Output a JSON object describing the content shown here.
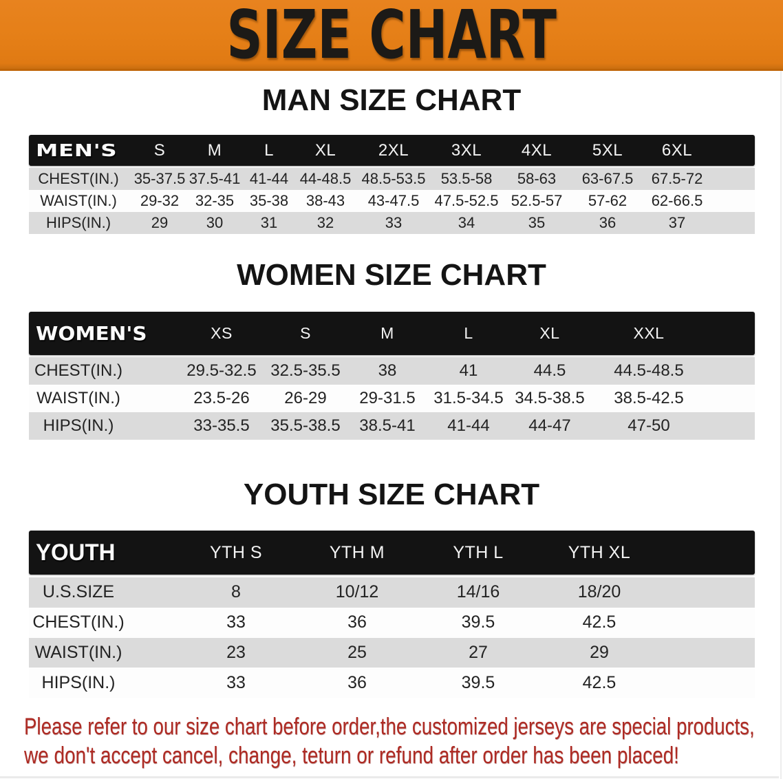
{
  "banner": {
    "title": "SIZE CHART",
    "background_color": "#e5801a",
    "text_color": "#1c1a17"
  },
  "sections": [
    {
      "title": "MAN SIZE CHART",
      "table": {
        "label": "MEN'S",
        "columns": [
          "S",
          "M",
          "L",
          "XL",
          "2XL",
          "3XL",
          "4XL",
          "5XL",
          "6XL"
        ],
        "rows": [
          {
            "label": "CHEST(IN.)",
            "values": [
              "35-37.5",
              "37.5-41",
              "41-44",
              "44-48.5",
              "48.5-53.5",
              "53.5-58",
              "58-63",
              "63-67.5",
              "67.5-72"
            ]
          },
          {
            "label": "WAIST(IN.)",
            "values": [
              "29-32",
              "32-35",
              "35-38",
              "38-43",
              "43-47.5",
              "47.5-52.5",
              "52.5-57",
              "57-62",
              "62-66.5"
            ]
          },
          {
            "label": "HIPS(IN.)",
            "values": [
              "29",
              "30",
              "31",
              "32",
              "33",
              "34",
              "35",
              "36",
              "37"
            ]
          }
        ]
      }
    },
    {
      "title": "WOMEN SIZE CHART",
      "table": {
        "label": "WOMEN'S",
        "columns": [
          "XS",
          "S",
          "M",
          "L",
          "XL",
          "XXL"
        ],
        "rows": [
          {
            "label": "CHEST(IN.)",
            "values": [
              "29.5-32.5",
              "32.5-35.5",
              "38",
              "41",
              "44.5",
              "44.5-48.5"
            ]
          },
          {
            "label": "WAIST(IN.)",
            "values": [
              "23.5-26",
              "26-29",
              "29-31.5",
              "31.5-34.5",
              "34.5-38.5",
              "38.5-42.5"
            ]
          },
          {
            "label": "HIPS(IN.)",
            "values": [
              "33-35.5",
              "35.5-38.5",
              "38.5-41",
              "41-44",
              "44-47",
              "47-50"
            ]
          }
        ]
      }
    },
    {
      "title": "YOUTH SIZE CHART",
      "table": {
        "label": "YOUTH",
        "columns": [
          "YTH S",
          "YTH M",
          "YTH L",
          "YTH XL"
        ],
        "rows": [
          {
            "label": "U.S.SIZE",
            "values": [
              "8",
              "10/12",
              "14/16",
              "18/20"
            ]
          },
          {
            "label": "CHEST(IN.)",
            "values": [
              "33",
              "36",
              "39.5",
              "42.5"
            ]
          },
          {
            "label": "WAIST(IN.)",
            "values": [
              "23",
              "25",
              "27",
              "29"
            ]
          },
          {
            "label": "HIPS(IN.)",
            "values": [
              "33",
              "36",
              "39.5",
              "42.5"
            ]
          }
        ]
      }
    }
  ],
  "disclaimer": {
    "line1": "Please refer to our size chart before order,the customized jerseys are special products,",
    "line2": "we don't accept cancel, change, teturn or refund after order has been placed!",
    "text_color": "#ad2a23"
  },
  "colors": {
    "header_band": "#131313",
    "row_gray": "#dbdbdb",
    "row_white": "#fdfdfd",
    "header_text": "#f4f4f4",
    "body_text": "#232323"
  }
}
